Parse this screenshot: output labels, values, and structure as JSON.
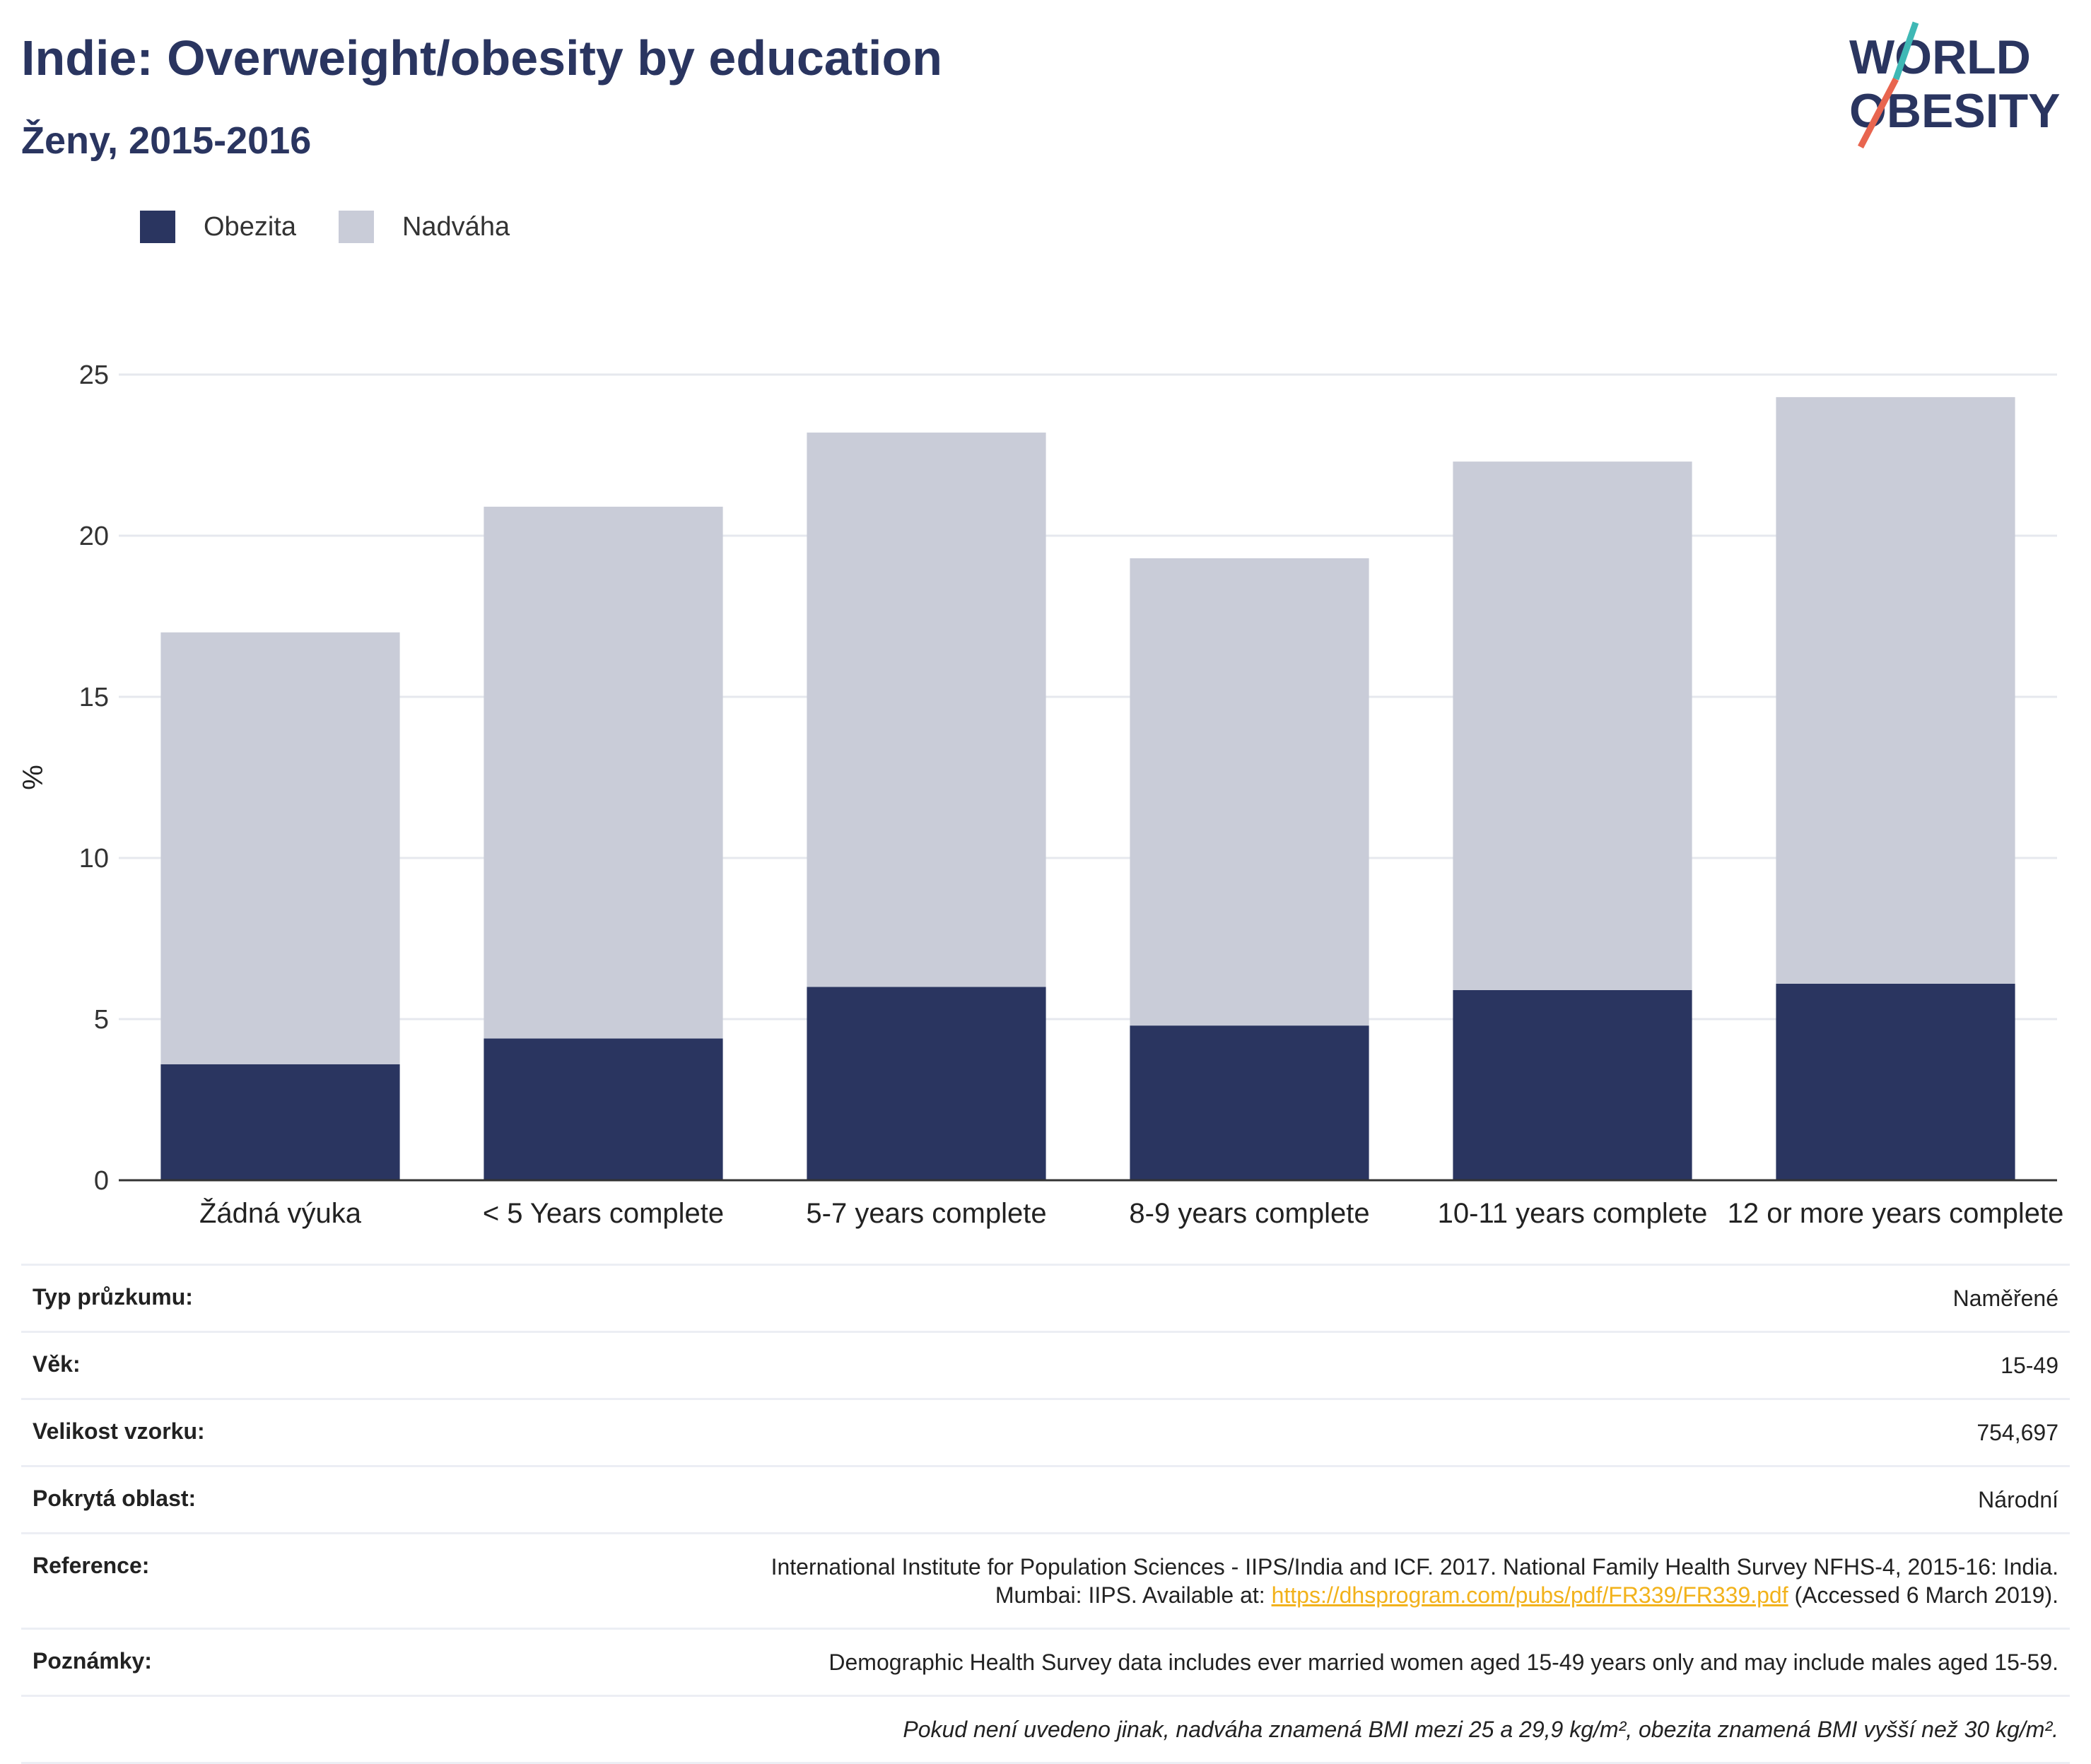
{
  "header": {
    "title": "Indie: Overweight/obesity by education",
    "subtitle": "Ženy, 2015-2016"
  },
  "logo": {
    "line1": "WORLD",
    "line2": "OBESITY",
    "colors": {
      "text": "#2a3560",
      "slash_top": "#3fb8b5",
      "slash_bottom": "#e8654f"
    }
  },
  "colors": {
    "obezita": "#2a3560",
    "nadvaha": "#c9ccd8",
    "gridline": "#e6e8ee",
    "axis": "#333333"
  },
  "chart_data": {
    "type": "bar",
    "stacked": true,
    "title": "",
    "xlabel": "",
    "ylabel": "%",
    "ylim": [
      0,
      25
    ],
    "yticks": [
      0,
      5,
      10,
      15,
      20,
      25
    ],
    "grid": true,
    "legend_position": "top-left",
    "categories": [
      "Žádná výuka",
      "< 5 Years complete",
      "5-7 years complete",
      "8-9 years complete",
      "10-11 years complete",
      "12 or more years complete"
    ],
    "series": [
      {
        "name": "Obezita",
        "values": [
          3.6,
          4.4,
          6.0,
          4.8,
          5.9,
          6.1
        ]
      },
      {
        "name": "Nadváha",
        "values": [
          13.4,
          16.5,
          17.2,
          14.5,
          16.4,
          18.2
        ]
      }
    ]
  },
  "info": {
    "survey_type": {
      "label": "Typ průzkumu:",
      "value": "Naměřené"
    },
    "age": {
      "label": "Věk:",
      "value": "15-49"
    },
    "sample_size": {
      "label": "Velikost vzorku:",
      "value": "754,697"
    },
    "area_covered": {
      "label": "Pokrytá oblast:",
      "value": "Národní"
    },
    "reference": {
      "label": "Reference:",
      "line1": "International Institute for Population Sciences - IIPS/India and ICF. 2017. National Family Health Survey NFHS-4, 2015-16: India.",
      "line2_prefix": "Mumbai: IIPS. Available at: ",
      "link": "https://dhsprogram.com/pubs/pdf/FR339/FR339.pdf",
      "line2_suffix": " (Accessed 6 March 2019)."
    },
    "notes": {
      "label": "Poznámky:",
      "value": "Demographic Health Survey data includes ever married women aged 15-49 years only and may include males aged 15-59."
    },
    "definition": "Pokud není uvedeno jinak, nadváha znamená BMI mezi 25 a 29,9 kg/m², obezita znamená BMI vyšší než 30 kg/m²."
  }
}
